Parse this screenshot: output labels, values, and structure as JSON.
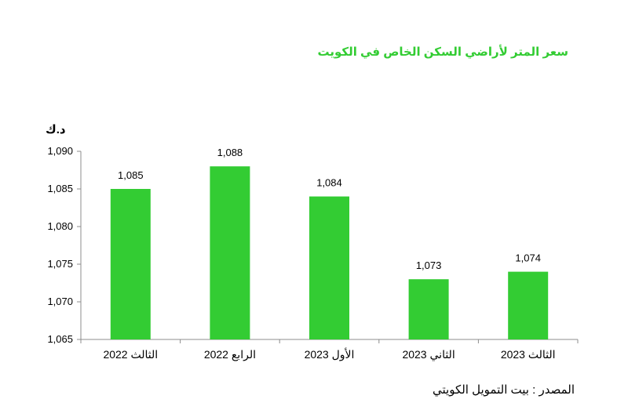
{
  "title": "سعر المتر لأراضي السكن الخاص في الكويت",
  "unit_label": "د.ك",
  "source": "المصدر : بيت التمويل الكويتي",
  "colors": {
    "bar": "#33cc33",
    "title": "#33cc33",
    "axis": "#8c8c8c"
  },
  "chart_data": {
    "type": "bar",
    "title": "سعر المتر لأراضي السكن الخاص في الكويت",
    "xlabel": "",
    "ylabel": "د.ك",
    "categories": [
      "الثالث 2022",
      "الرابع 2022",
      "الأول 2023",
      "الثاني 2023",
      "الثالث 2023"
    ],
    "values": [
      1085,
      1088,
      1084,
      1073,
      1074
    ],
    "data_labels": [
      "1,085",
      "1,088",
      "1,084",
      "1,073",
      "1,074"
    ],
    "ylim": [
      1065,
      1090
    ],
    "yticks": [
      1065,
      1070,
      1075,
      1080,
      1085,
      1090
    ],
    "ytick_labels": [
      "1,065",
      "1,070",
      "1,075",
      "1,080",
      "1,085",
      "1,090"
    ],
    "grid": false,
    "legend": "none"
  }
}
